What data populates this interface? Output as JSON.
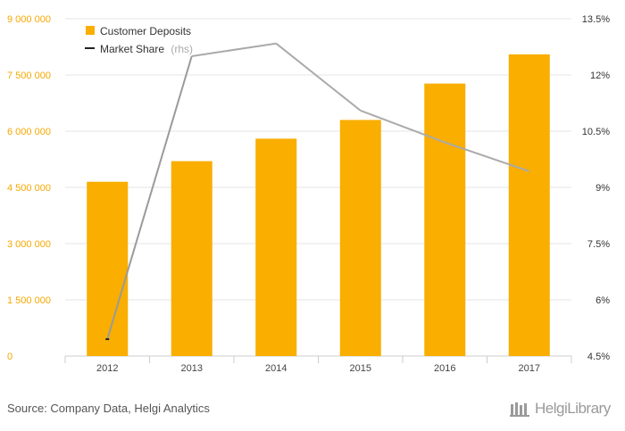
{
  "chart_data": {
    "type": "bar",
    "categories": [
      "2012",
      "2013",
      "2014",
      "2015",
      "2016",
      "2017"
    ],
    "series": [
      {
        "name": "Customer Deposits",
        "type": "bar",
        "axis": "left",
        "values": [
          4650000,
          5200000,
          5800000,
          6300000,
          7270000,
          8050000
        ]
      },
      {
        "name": "Market Share",
        "type": "line",
        "axis": "right",
        "values": [
          4.95,
          12.5,
          12.84,
          11.05,
          10.2,
          9.43
        ]
      }
    ],
    "legend": {
      "bar_label": "Customer Deposits",
      "line_label": "Market Share",
      "line_suffix": "(rhs)"
    },
    "ylim_left": [
      0,
      9000000
    ],
    "ylim_right": [
      4.5,
      13.5
    ],
    "left_ticks": [
      "0",
      "1 500 000",
      "3 000 000",
      "4 500 000",
      "6 000 000",
      "7 500 000",
      "9 000 000"
    ],
    "right_ticks": [
      "4.5%",
      "6%",
      "7.5%",
      "9%",
      "10.5%",
      "12%",
      "13.5%"
    ],
    "colors": {
      "bars": "#f9ae00",
      "line": "#aaaaaa",
      "line_start": "#222222",
      "left_axis_text": "#f5a800"
    },
    "grid": true,
    "legend_position": "top-left"
  },
  "footer": {
    "source": "Source: Company Data, Helgi Analytics",
    "brand": "HelgiLibrary"
  }
}
